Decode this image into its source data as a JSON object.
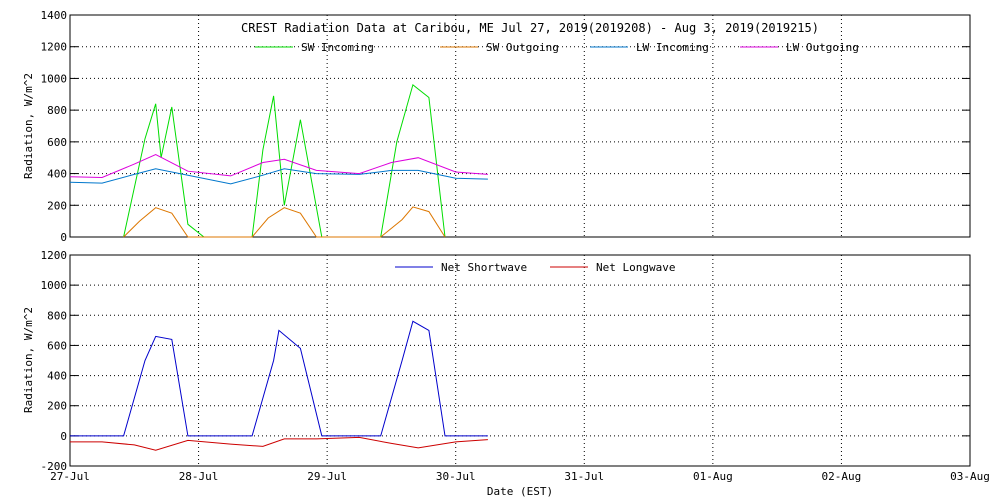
{
  "chart_data": [
    {
      "type": "line",
      "title": "CREST Radiation Data at Caribou, ME   Jul 27, 2019(2019208) - Aug  3, 2019(2019215)",
      "xlabel": "",
      "ylabel": "Radiation, W/m^2",
      "xlim": [
        "2019-07-27",
        "2019-08-03"
      ],
      "ylim": [
        0,
        1400
      ],
      "yticks": [
        0,
        200,
        400,
        600,
        800,
        1000,
        1200,
        1400
      ],
      "grid": true,
      "legend": "top",
      "series": [
        {
          "name": "SW Incoming",
          "color": "#00dd00",
          "x": [
            "2019-07-27 10:00",
            "2019-07-27 14:00",
            "2019-07-27 16:00",
            "2019-07-27 17:00",
            "2019-07-27 19:00",
            "2019-07-27 22:00",
            "2019-07-28 01:00",
            "2019-07-28 05:00",
            "2019-07-28 10:00",
            "2019-07-28 12:00",
            "2019-07-28 14:00",
            "2019-07-28 16:00",
            "2019-07-28 19:00",
            "2019-07-28 23:00",
            "2019-07-29 06:00",
            "2019-07-29 10:00",
            "2019-07-29 13:00",
            "2019-07-29 16:00",
            "2019-07-29 19:00",
            "2019-07-29 22:00"
          ],
          "values": [
            0,
            620,
            840,
            500,
            820,
            80,
            0,
            0,
            0,
            550,
            890,
            200,
            740,
            0,
            0,
            0,
            600,
            960,
            880,
            0
          ]
        },
        {
          "name": "SW Outgoing",
          "color": "#dd7700",
          "x": [
            "2019-07-27 10:00",
            "2019-07-27 13:00",
            "2019-07-27 16:00",
            "2019-07-27 19:00",
            "2019-07-27 22:00",
            "2019-07-28 10:00",
            "2019-07-28 13:00",
            "2019-07-28 16:00",
            "2019-07-28 19:00",
            "2019-07-28 22:00",
            "2019-07-29 10:00",
            "2019-07-29 14:00",
            "2019-07-29 16:00",
            "2019-07-29 19:00",
            "2019-07-29 22:00"
          ],
          "values": [
            0,
            100,
            185,
            150,
            0,
            0,
            120,
            185,
            150,
            0,
            0,
            110,
            190,
            160,
            0
          ]
        },
        {
          "name": "LW Incoming",
          "color": "#0077cc",
          "x": [
            "2019-07-27 00:00",
            "2019-07-27 06:00",
            "2019-07-27 12:00",
            "2019-07-27 16:00",
            "2019-07-27 22:00",
            "2019-07-28 06:00",
            "2019-07-28 12:00",
            "2019-07-28 16:00",
            "2019-07-28 22:00",
            "2019-07-29 06:00",
            "2019-07-29 12:00",
            "2019-07-29 17:00",
            "2019-07-30 00:00",
            "2019-07-30 06:00"
          ],
          "values": [
            345,
            340,
            395,
            430,
            390,
            335,
            390,
            430,
            400,
            395,
            420,
            420,
            370,
            365
          ]
        },
        {
          "name": "LW Outgoing",
          "color": "#dd00dd",
          "x": [
            "2019-07-27 00:00",
            "2019-07-27 06:00",
            "2019-07-27 12:00",
            "2019-07-27 16:00",
            "2019-07-27 22:00",
            "2019-07-28 06:00",
            "2019-07-28 12:00",
            "2019-07-28 16:00",
            "2019-07-28 22:00",
            "2019-07-29 06:00",
            "2019-07-29 12:00",
            "2019-07-29 17:00",
            "2019-07-30 00:00",
            "2019-07-30 06:00"
          ],
          "values": [
            380,
            375,
            460,
            520,
            415,
            385,
            470,
            490,
            420,
            400,
            470,
            500,
            410,
            395
          ]
        }
      ]
    },
    {
      "type": "line",
      "title": "",
      "xlabel": "Date (EST)",
      "ylabel": "Radiation, W/m^2",
      "xlim": [
        "2019-07-27",
        "2019-08-03"
      ],
      "ylim": [
        -200,
        1200
      ],
      "yticks": [
        -200,
        0,
        200,
        400,
        600,
        800,
        1000,
        1200
      ],
      "xticks": [
        "27-Jul",
        "28-Jul",
        "29-Jul",
        "30-Jul",
        "31-Jul",
        "01-Aug",
        "02-Aug",
        "03-Aug"
      ],
      "grid": true,
      "legend": "top",
      "series": [
        {
          "name": "Net Shortwave",
          "color": "#0000cc",
          "x": [
            "2019-07-27 00:00",
            "2019-07-27 10:00",
            "2019-07-27 14:00",
            "2019-07-27 16:00",
            "2019-07-27 19:00",
            "2019-07-27 22:00",
            "2019-07-28 10:00",
            "2019-07-28 14:00",
            "2019-07-28 15:00",
            "2019-07-28 19:00",
            "2019-07-28 23:00",
            "2019-07-29 10:00",
            "2019-07-29 14:00",
            "2019-07-29 16:00",
            "2019-07-29 19:00",
            "2019-07-29 22:00",
            "2019-07-30 06:00"
          ],
          "values": [
            0,
            0,
            500,
            660,
            640,
            0,
            0,
            500,
            700,
            580,
            0,
            0,
            500,
            760,
            700,
            0,
            0
          ]
        },
        {
          "name": "Net Longwave",
          "color": "#cc0000",
          "x": [
            "2019-07-27 00:00",
            "2019-07-27 06:00",
            "2019-07-27 12:00",
            "2019-07-27 16:00",
            "2019-07-27 22:00",
            "2019-07-28 06:00",
            "2019-07-28 12:00",
            "2019-07-28 16:00",
            "2019-07-28 22:00",
            "2019-07-29 06:00",
            "2019-07-29 12:00",
            "2019-07-29 17:00",
            "2019-07-30 00:00",
            "2019-07-30 06:00"
          ],
          "values": [
            -40,
            -40,
            -60,
            -95,
            -30,
            -55,
            -70,
            -20,
            -20,
            -10,
            -50,
            -80,
            -40,
            -25
          ]
        }
      ]
    }
  ]
}
